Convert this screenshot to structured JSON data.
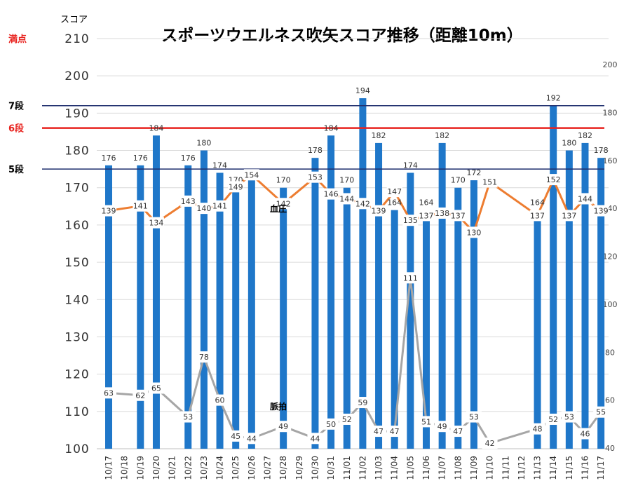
{
  "title": "スポーツウエルネス吹矢スコア推移（距離10m）",
  "y_axis_label": "スコア",
  "colors": {
    "bar": "#1f77c9",
    "blood_pressure": "#ed7d31",
    "pulse": "#a6a6a6",
    "rank_line": "#1f2f6e",
    "rank6_line": "#e8221e"
  },
  "reference_lines": [
    {
      "label": "満点",
      "value": 210,
      "color": "#e8221e"
    },
    {
      "label": "7段",
      "value": 192,
      "color": "#000000"
    },
    {
      "label": "6段",
      "value": 186,
      "color": "#e8221e"
    },
    {
      "label": "5段",
      "value": 175,
      "color": "#000000"
    }
  ],
  "chart_data": {
    "type": "bar",
    "title": "スポーツウエルネス吹矢スコア推移（距離10m）",
    "ylabel": "スコア",
    "ylim": [
      100,
      210
    ],
    "y_ticks": [
      100,
      110,
      120,
      130,
      140,
      150,
      160,
      170,
      180,
      190,
      200,
      210
    ],
    "y2lim": [
      40,
      200
    ],
    "y2_ticks": [
      40,
      60,
      80,
      100,
      120,
      140,
      160,
      180,
      200
    ],
    "categories": [
      "10/17",
      "10/18",
      "10/19",
      "10/20",
      "10/21",
      "10/22",
      "10/23",
      "10/24",
      "10/25",
      "10/26",
      "10/27",
      "10/28",
      "10/29",
      "10/30",
      "10/31",
      "11/01",
      "11/02",
      "11/03",
      "11/04",
      "11/05",
      "11/06",
      "11/07",
      "11/08",
      "11/09",
      "11/10",
      "11/11",
      "11/12",
      "11/13",
      "11/14",
      "11/15",
      "11/16",
      "11/17"
    ],
    "series": [
      {
        "name": "スコア",
        "type": "bar",
        "axis": "left",
        "values": [
          176,
          null,
          176,
          184,
          null,
          176,
          180,
          174,
          170,
          172,
          null,
          170,
          null,
          178,
          184,
          170,
          194,
          182,
          164,
          174,
          164,
          182,
          170,
          172,
          null,
          null,
          null,
          164,
          192,
          180,
          182,
          178
        ]
      },
      {
        "name": "血圧",
        "type": "line",
        "axis": "right",
        "values": [
          139,
          null,
          141,
          134,
          null,
          143,
          140,
          141,
          149,
          154,
          null,
          142,
          null,
          153,
          146,
          144,
          142,
          139,
          147,
          135,
          137,
          138,
          137,
          130,
          151,
          null,
          null,
          137,
          152,
          137,
          144,
          139
        ]
      },
      {
        "name": "脈拍",
        "type": "line",
        "axis": "right",
        "values": [
          63,
          null,
          62,
          65,
          null,
          53,
          78,
          60,
          45,
          44,
          null,
          49,
          null,
          44,
          50,
          52,
          59,
          47,
          47,
          111,
          51,
          49,
          47,
          53,
          42,
          null,
          null,
          48,
          52,
          53,
          46,
          55
        ]
      }
    ],
    "grid": true
  }
}
